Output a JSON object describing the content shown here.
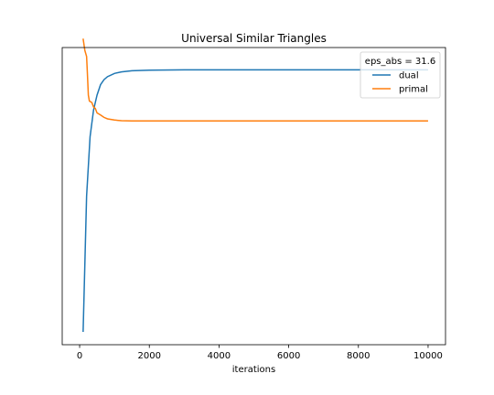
{
  "chart_data": {
    "type": "line",
    "title": "Universal Similar Triangles",
    "xlabel": "iterations",
    "ylabel": "",
    "xlim": [
      -500,
      10500
    ],
    "ylim": [
      0,
      100
    ],
    "xticks": [
      0,
      2000,
      4000,
      6000,
      8000,
      10000
    ],
    "y_ticks_shown": false,
    "grid": false,
    "legend": {
      "title": "eps_abs = 31.6",
      "placement": "top-right"
    },
    "series": [
      {
        "name": "dual",
        "color": "#1f77b4",
        "x": [
          100,
          200,
          300,
          400,
          500,
          600,
          700,
          800,
          1000,
          1200,
          1500,
          2000,
          3000,
          5000,
          7000,
          10000
        ],
        "y": [
          4.3,
          50,
          70,
          79,
          84,
          87.5,
          89.2,
          90.2,
          91.3,
          91.8,
          92.2,
          92.4,
          92.5,
          92.5,
          92.5,
          92.5
        ]
      },
      {
        "name": "primal",
        "color": "#ff7f0e",
        "x": [
          100,
          150,
          200,
          220,
          250,
          280,
          350,
          400,
          450,
          500,
          600,
          700,
          800,
          1000,
          1200,
          1500,
          2000,
          3000,
          5000,
          7000,
          10000
        ],
        "y": [
          103,
          99,
          97,
          92,
          84,
          82,
          81.5,
          80,
          79.5,
          78,
          77.3,
          76.5,
          76,
          75.6,
          75.4,
          75.3,
          75.3,
          75.3,
          75.3,
          75.3,
          75.3
        ]
      }
    ]
  }
}
